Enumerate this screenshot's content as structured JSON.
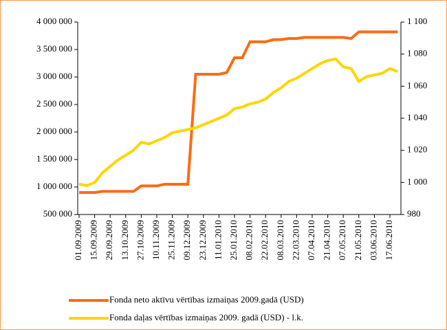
{
  "chart_data": {
    "type": "line",
    "categories": [
      "01.09.2009",
      null,
      "15.09.2009",
      null,
      "29.09.2009",
      null,
      "13.10.2009",
      null,
      "27.10.2009",
      null,
      "10.11.2009",
      null,
      "25.11.2009",
      null,
      "09.12.2009",
      null,
      "23.12.2009",
      null,
      "11.01.2010",
      null,
      "25.01.2010",
      null,
      "08.02.2010",
      null,
      "22.02.2010",
      null,
      "08.03.2010",
      null,
      "22.03.2010",
      null,
      "07.04.2010",
      null,
      "21.04.2010",
      null,
      "07.05.2010",
      null,
      "21.05.2010",
      null,
      "03.06.2010",
      null,
      "17.06.2010",
      null
    ],
    "series": [
      {
        "name": "Fonda neto aktīvu vērtības izmaiņas 2009.gadā (USD)",
        "color": "#ff6a13",
        "values": [
          900000,
          900000,
          900000,
          920000,
          920000,
          920000,
          920000,
          920000,
          1020000,
          1020000,
          1020000,
          1050000,
          1050000,
          1050000,
          1050000,
          3050000,
          3050000,
          3050000,
          3050000,
          3080000,
          3350000,
          3350000,
          3640000,
          3640000,
          3640000,
          3680000,
          3680000,
          3700000,
          3700000,
          3720000,
          3720000,
          3720000,
          3720000,
          3720000,
          3720000,
          3700000,
          3820000,
          3820000,
          3820000,
          3820000,
          3820000,
          3820000
        ]
      },
      {
        "name": "Fonda daļas vērtības izmaiņas 2009. gadā (USD) - l.k.",
        "color": "#ffd500",
        "axis": "y2",
        "values": [
          999,
          998,
          1000,
          1006,
          1010,
          1014,
          1017,
          1020,
          1025,
          1024,
          1026,
          1028,
          1031,
          1032,
          1033,
          1034,
          1036,
          1038,
          1040,
          1042,
          1046,
          1047,
          1049,
          1050,
          1052,
          1056,
          1059,
          1063,
          1065,
          1068,
          1071,
          1074,
          1076,
          1077,
          1072,
          1071,
          1063,
          1066,
          1067,
          1068,
          1071,
          1069
        ]
      }
    ],
    "ylim": [
      500000,
      4000000
    ],
    "yticks": [
      {
        "value": 500000,
        "label": "500 000"
      },
      {
        "value": 1000000,
        "label": "1 000 000"
      },
      {
        "value": 1500000,
        "label": "1 500 000"
      },
      {
        "value": 2000000,
        "label": "2 000 000"
      },
      {
        "value": 2500000,
        "label": "2 500 000"
      },
      {
        "value": 3000000,
        "label": "3 000 000"
      },
      {
        "value": 3500000,
        "label": "3 500 000"
      },
      {
        "value": 4000000,
        "label": "4 000 000"
      }
    ],
    "y2lim": [
      980,
      1100
    ],
    "y2ticks": [
      980,
      {
        "value": 1000,
        "label": "1 000"
      },
      {
        "value": 1020,
        "label": "1 020"
      },
      {
        "value": 1040,
        "label": "1 040"
      },
      {
        "value": 1060,
        "label": "1 060"
      },
      {
        "value": 1080,
        "label": "1 080"
      },
      {
        "value": 1100,
        "label": "1 100"
      }
    ],
    "legend": "bottom"
  }
}
